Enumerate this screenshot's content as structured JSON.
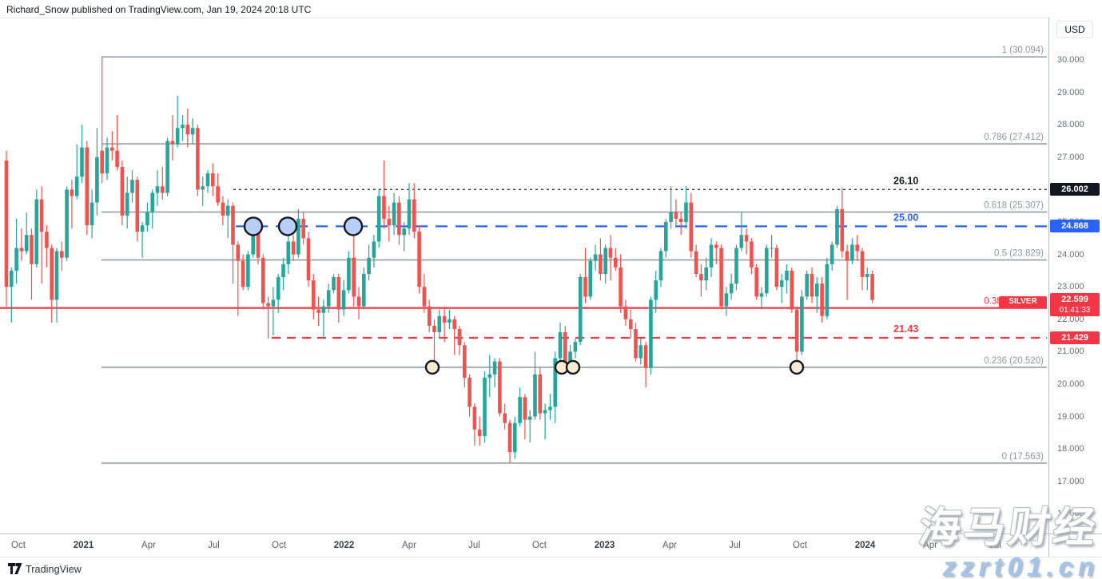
{
  "header": {
    "published_line": "Richard_Snow published on TradingView.com, Jan 19, 2024 20:18 UTC"
  },
  "price_axis": {
    "currency": "USD",
    "labels": [
      "30.000",
      "29.000",
      "28.000",
      "27.000",
      "26.000",
      "25.000",
      "24.000",
      "23.000",
      "22.000",
      "21.000",
      "20.000",
      "19.000",
      "18.000",
      "17.000",
      "16.000"
    ],
    "label_values": [
      30,
      29,
      28,
      27,
      26,
      25,
      24,
      23,
      22,
      21,
      20,
      19,
      18,
      17,
      16
    ],
    "badges": [
      {
        "text": "26.002",
        "price": 26.002,
        "bg": "#131722"
      },
      {
        "text": "24.868",
        "price": 24.868,
        "bg": "#2962ff"
      },
      {
        "text": "22.599",
        "price": 22.599,
        "bg": "#f23645",
        "timer": "01:41:33"
      },
      {
        "text": "21.429",
        "price": 21.429,
        "bg": "#f23645"
      }
    ]
  },
  "footer": {
    "brand": "TradingView"
  },
  "watermark": {
    "line1": "海马财经",
    "line2": "zzrt01.cn"
  },
  "colors": {
    "up_candle": "#26a69a",
    "down_candle": "#ef5350",
    "accent_red": "#f23645",
    "accent_blue": "#2962ff",
    "fib_line": "#8f939c",
    "fib_label": "#9196a1",
    "dotted_black": "#2f3241",
    "axis_text": "#696d78"
  },
  "chart_data": {
    "type": "candlestick",
    "symbol": "SILVER",
    "quote_currency": "USD",
    "last_price": 22.599,
    "bar_close_countdown": "01:41:33",
    "ylim": [
      15.4,
      31.3
    ],
    "x_ticks": [
      "Oct",
      "2021",
      "Apr",
      "Jul",
      "Oct",
      "2022",
      "Apr",
      "Jul",
      "Oct",
      "2023",
      "Apr",
      "Jul",
      "Oct",
      "2024",
      "Apr",
      "Jul"
    ],
    "fib_retracement": {
      "highlight_ratio": "0.382",
      "levels": [
        {
          "ratio": "1",
          "value": 30.094
        },
        {
          "ratio": "0.786",
          "value": 27.412
        },
        {
          "ratio": "0.618",
          "value": 25.307
        },
        {
          "ratio": "0.5",
          "value": 23.829
        },
        {
          "ratio": "0.382",
          "value": 22.35
        },
        {
          "ratio": "0.236",
          "value": 20.52
        },
        {
          "ratio": "0",
          "value": 17.563
        }
      ]
    },
    "annotation_lines": [
      {
        "label": "26.10",
        "price": 26.002,
        "style": "dotted",
        "color": "#2f3241",
        "label_color": "#131722",
        "x_start": 292
      },
      {
        "label": "25.00",
        "price": 24.868,
        "style": "dashed",
        "color": "#2962ff",
        "label_color": "#2962ff",
        "x_start": 295
      },
      {
        "label": "21.43",
        "price": 21.429,
        "style": "dashed",
        "color": "#f23645",
        "label_color": "#f23645",
        "x_start": 340
      }
    ],
    "solid_line": {
      "price": 22.35,
      "color": "#f23645"
    },
    "markers": {
      "blue_circles": {
        "price": 24.868,
        "x_positions": [
          317,
          360,
          442
        ],
        "radius": 11,
        "fill": "#b8cff7",
        "stroke": "#131722"
      },
      "cream_circles": {
        "price": 20.52,
        "x_positions": [
          541,
          703,
          717,
          997
        ],
        "radius": 8,
        "fill": "#f7ecd2",
        "stroke": "#131722"
      }
    },
    "candles": [
      [
        26.9,
        27.2,
        22.4,
        23.0
      ],
      [
        23.0,
        23.6,
        21.9,
        23.5
      ],
      [
        23.5,
        25.1,
        23.1,
        24.2
      ],
      [
        24.2,
        24.8,
        23.8,
        24.1
      ],
      [
        24.1,
        25.3,
        24.0,
        24.6
      ],
      [
        24.6,
        24.8,
        22.6,
        23.7
      ],
      [
        23.7,
        26.0,
        23.6,
        25.7
      ],
      [
        25.7,
        26.1,
        23.1,
        24.7
      ],
      [
        24.7,
        24.9,
        23.6,
        24.2
      ],
      [
        24.2,
        24.3,
        21.9,
        22.6
      ],
      [
        22.6,
        24.2,
        21.9,
        24.1
      ],
      [
        24.1,
        24.4,
        23.5,
        23.9
      ],
      [
        23.9,
        26.1,
        23.8,
        26.0
      ],
      [
        26.0,
        26.3,
        24.8,
        25.8
      ],
      [
        25.8,
        27.4,
        25.7,
        26.4
      ],
      [
        26.4,
        28.0,
        26.2,
        27.3
      ],
      [
        27.3,
        27.5,
        24.6,
        24.9
      ],
      [
        24.9,
        26.0,
        24.5,
        25.6
      ],
      [
        25.6,
        27.9,
        25.2,
        27.0
      ],
      [
        27.2,
        30.09,
        26.2,
        26.5
      ],
      [
        26.5,
        27.6,
        26.3,
        27.3
      ],
      [
        27.3,
        27.8,
        26.9,
        27.2
      ],
      [
        27.2,
        28.3,
        26.6,
        26.7
      ],
      [
        26.7,
        26.9,
        24.9,
        25.2
      ],
      [
        25.2,
        26.4,
        24.8,
        25.9
      ],
      [
        25.9,
        26.6,
        25.6,
        26.3
      ],
      [
        26.3,
        26.4,
        24.4,
        24.7
      ],
      [
        24.7,
        25.0,
        23.9,
        24.9
      ],
      [
        24.9,
        25.6,
        24.7,
        25.3
      ],
      [
        25.3,
        26.0,
        24.8,
        25.9
      ],
      [
        25.9,
        26.6,
        25.5,
        26.1
      ],
      [
        26.1,
        26.7,
        25.7,
        25.9
      ],
      [
        25.9,
        27.6,
        25.8,
        27.5
      ],
      [
        27.5,
        28.3,
        26.9,
        27.4
      ],
      [
        27.4,
        28.9,
        27.3,
        27.9
      ],
      [
        27.9,
        28.3,
        27.5,
        28.0
      ],
      [
        28.0,
        28.5,
        27.3,
        27.7
      ],
      [
        27.7,
        28.2,
        27.4,
        27.9
      ],
      [
        27.9,
        28.0,
        25.8,
        26.0
      ],
      [
        26.0,
        26.4,
        25.5,
        26.1
      ],
      [
        26.1,
        26.6,
        25.9,
        26.5
      ],
      [
        26.5,
        26.8,
        25.8,
        26.1
      ],
      [
        26.1,
        26.5,
        25.5,
        25.6
      ],
      [
        25.6,
        25.8,
        24.9,
        25.2
      ],
      [
        25.2,
        25.7,
        24.5,
        25.5
      ],
      [
        25.5,
        25.6,
        23.1,
        24.3
      ],
      [
        24.3,
        24.4,
        22.1,
        23.8
      ],
      [
        23.8,
        24.0,
        22.9,
        23.0
      ],
      [
        23.0,
        24.1,
        22.9,
        24.0
      ],
      [
        24.0,
        24.9,
        23.9,
        24.7
      ],
      [
        24.7,
        24.8,
        23.7,
        23.9
      ],
      [
        23.9,
        24.0,
        22.3,
        22.5
      ],
      [
        22.5,
        22.7,
        21.4,
        22.4
      ],
      [
        22.4,
        23.0,
        21.5,
        22.6
      ],
      [
        22.6,
        23.4,
        22.2,
        23.3
      ],
      [
        23.3,
        23.9,
        22.9,
        23.7
      ],
      [
        23.7,
        24.9,
        23.4,
        24.4
      ],
      [
        24.4,
        24.6,
        23.8,
        24.0
      ],
      [
        24.0,
        25.4,
        23.9,
        25.1
      ],
      [
        25.1,
        25.3,
        24.3,
        24.5
      ],
      [
        24.5,
        24.7,
        23.0,
        23.2
      ],
      [
        23.2,
        23.4,
        22.0,
        22.3
      ],
      [
        22.3,
        22.7,
        21.8,
        22.2
      ],
      [
        22.2,
        22.6,
        21.4,
        22.4
      ],
      [
        22.4,
        23.1,
        22.2,
        22.9
      ],
      [
        22.9,
        23.4,
        22.8,
        23.3
      ],
      [
        23.3,
        23.4,
        21.9,
        22.3
      ],
      [
        22.3,
        23.2,
        22.1,
        22.9
      ],
      [
        22.9,
        24.1,
        22.8,
        23.9
      ],
      [
        23.9,
        24.9,
        22.4,
        22.7
      ],
      [
        22.7,
        23.0,
        22.0,
        22.4
      ],
      [
        22.4,
        23.6,
        22.3,
        23.4
      ],
      [
        23.4,
        24.3,
        23.2,
        23.9
      ],
      [
        23.9,
        24.6,
        23.6,
        24.4
      ],
      [
        24.4,
        26.0,
        24.2,
        25.8
      ],
      [
        25.8,
        26.9,
        24.8,
        25.1
      ],
      [
        25.1,
        25.5,
        24.4,
        24.9
      ],
      [
        24.9,
        25.9,
        24.6,
        25.6
      ],
      [
        25.6,
        25.8,
        24.3,
        24.6
      ],
      [
        24.6,
        25.0,
        24.1,
        24.8
      ],
      [
        24.8,
        26.2,
        24.6,
        25.7
      ],
      [
        25.7,
        26.2,
        24.5,
        24.7
      ],
      [
        24.7,
        24.9,
        22.8,
        23.0
      ],
      [
        23.0,
        23.4,
        22.2,
        22.4
      ],
      [
        22.4,
        22.6,
        21.6,
        21.8
      ],
      [
        21.8,
        22.0,
        20.5,
        21.6
      ],
      [
        21.6,
        22.3,
        21.4,
        22.1
      ],
      [
        22.1,
        22.4,
        21.3,
        21.9
      ],
      [
        21.9,
        22.3,
        21.7,
        22.0
      ],
      [
        22.0,
        22.1,
        20.9,
        21.7
      ],
      [
        21.7,
        21.8,
        20.9,
        21.2
      ],
      [
        21.2,
        21.3,
        19.9,
        20.2
      ],
      [
        20.2,
        20.3,
        19.0,
        19.3
      ],
      [
        19.3,
        19.4,
        18.1,
        18.6
      ],
      [
        18.6,
        19.0,
        18.1,
        18.4
      ],
      [
        18.4,
        20.4,
        18.2,
        20.2
      ],
      [
        20.2,
        20.9,
        19.6,
        20.3
      ],
      [
        20.3,
        20.8,
        19.9,
        20.7
      ],
      [
        20.7,
        20.8,
        19.0,
        19.1
      ],
      [
        19.1,
        19.4,
        18.6,
        18.8
      ],
      [
        18.8,
        18.9,
        17.56,
        17.9
      ],
      [
        17.9,
        19.0,
        17.7,
        18.8
      ],
      [
        18.8,
        19.9,
        18.7,
        19.6
      ],
      [
        19.6,
        19.7,
        18.3,
        18.9
      ],
      [
        18.9,
        19.2,
        18.2,
        19.0
      ],
      [
        19.0,
        21.0,
        18.9,
        20.3
      ],
      [
        20.3,
        20.5,
        18.9,
        19.1
      ],
      [
        19.1,
        19.4,
        18.3,
        19.2
      ],
      [
        19.2,
        19.7,
        18.9,
        19.3
      ],
      [
        19.3,
        21.0,
        18.8,
        20.8
      ],
      [
        20.8,
        21.9,
        20.5,
        21.6
      ],
      [
        21.6,
        21.8,
        20.4,
        20.6
      ],
      [
        20.6,
        21.2,
        20.3,
        21.0
      ],
      [
        21.0,
        21.4,
        20.8,
        21.3
      ],
      [
        21.3,
        23.4,
        21.2,
        23.3
      ],
      [
        23.3,
        24.2,
        22.5,
        22.7
      ],
      [
        22.7,
        23.9,
        22.6,
        23.8
      ],
      [
        23.8,
        24.3,
        23.5,
        24.0
      ],
      [
        24.0,
        24.5,
        23.2,
        23.4
      ],
      [
        23.4,
        24.3,
        23.1,
        24.2
      ],
      [
        24.2,
        24.6,
        23.2,
        23.9
      ],
      [
        23.9,
        24.2,
        23.5,
        23.6
      ],
      [
        23.6,
        24.0,
        22.2,
        22.4
      ],
      [
        22.4,
        22.6,
        21.8,
        22.0
      ],
      [
        22.0,
        22.3,
        21.4,
        21.7
      ],
      [
        21.7,
        21.9,
        20.7,
        20.8
      ],
      [
        20.8,
        21.4,
        20.6,
        21.2
      ],
      [
        21.2,
        21.3,
        19.9,
        20.5
      ],
      [
        20.5,
        22.7,
        20.3,
        22.6
      ],
      [
        22.6,
        23.5,
        22.2,
        23.2
      ],
      [
        23.2,
        24.2,
        23.0,
        24.1
      ],
      [
        24.1,
        25.1,
        23.9,
        25.0
      ],
      [
        25.0,
        26.1,
        24.8,
        25.3
      ],
      [
        25.3,
        25.7,
        24.9,
        25.1
      ],
      [
        25.1,
        25.3,
        24.6,
        25.0
      ],
      [
        25.0,
        26.1,
        24.8,
        25.6
      ],
      [
        25.6,
        25.9,
        23.9,
        24.1
      ],
      [
        24.1,
        24.3,
        23.3,
        23.4
      ],
      [
        23.4,
        23.7,
        22.7,
        23.2
      ],
      [
        23.2,
        23.9,
        22.9,
        23.6
      ],
      [
        23.6,
        24.5,
        23.3,
        24.3
      ],
      [
        24.3,
        24.4,
        23.7,
        24.2
      ],
      [
        24.2,
        24.3,
        22.3,
        22.4
      ],
      [
        22.4,
        23.0,
        22.1,
        22.8
      ],
      [
        22.8,
        23.4,
        22.6,
        23.1
      ],
      [
        23.1,
        24.3,
        22.9,
        24.2
      ],
      [
        24.2,
        25.3,
        24.1,
        24.6
      ],
      [
        24.6,
        24.8,
        24.0,
        24.4
      ],
      [
        24.4,
        24.5,
        23.4,
        23.6
      ],
      [
        23.6,
        23.7,
        22.6,
        22.7
      ],
      [
        22.7,
        23.0,
        22.3,
        22.8
      ],
      [
        22.8,
        24.3,
        22.7,
        24.2
      ],
      [
        24.2,
        24.6,
        23.9,
        24.2
      ],
      [
        24.2,
        24.3,
        22.9,
        23.0
      ],
      [
        23.0,
        23.4,
        22.5,
        23.2
      ],
      [
        23.2,
        23.7,
        22.8,
        23.5
      ],
      [
        23.5,
        23.6,
        22.2,
        22.3
      ],
      [
        22.3,
        22.4,
        20.7,
        21.0
      ],
      [
        21.0,
        22.9,
        20.9,
        22.7
      ],
      [
        22.7,
        23.5,
        22.6,
        23.4
      ],
      [
        23.4,
        23.6,
        22.5,
        22.7
      ],
      [
        22.7,
        23.3,
        22.2,
        23.1
      ],
      [
        23.1,
        23.3,
        21.9,
        22.1
      ],
      [
        22.1,
        23.9,
        22.0,
        23.7
      ],
      [
        23.7,
        24.4,
        23.5,
        24.3
      ],
      [
        24.3,
        25.5,
        24.2,
        25.4
      ],
      [
        25.4,
        26.05,
        23.9,
        24.1
      ],
      [
        24.1,
        24.3,
        22.6,
        23.8
      ],
      [
        23.8,
        24.5,
        23.7,
        24.3
      ],
      [
        24.3,
        24.6,
        23.8,
        24.1
      ],
      [
        24.1,
        24.2,
        22.9,
        23.3
      ],
      [
        23.3,
        23.6,
        22.9,
        23.4
      ],
      [
        23.4,
        23.5,
        22.5,
        22.599
      ]
    ]
  }
}
